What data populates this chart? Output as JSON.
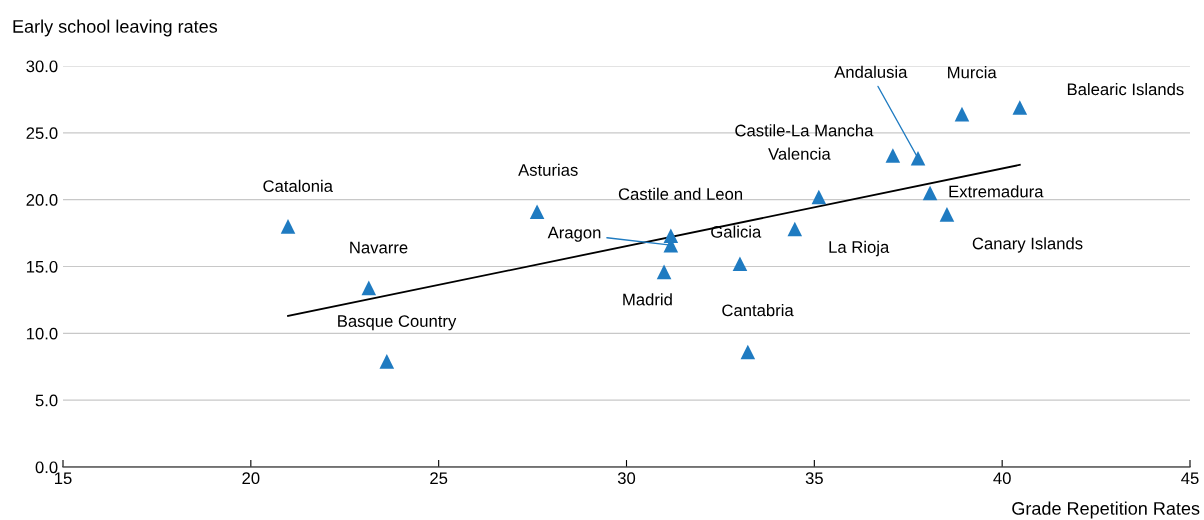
{
  "chart_data": {
    "type": "scatter",
    "xlabel": "Grade Repetition Rates",
    "ylabel": "Early school leaving rates",
    "xlim": [
      15,
      45
    ],
    "xticks": [
      15,
      20,
      25,
      30,
      35,
      40,
      45
    ],
    "ylim": [
      0,
      30
    ],
    "yticks": [
      {
        "value": 0,
        "label": "0.0"
      },
      {
        "value": 5,
        "label": "5.0"
      },
      {
        "value": 10,
        "label": "10.0"
      },
      {
        "value": 15,
        "label": "15.0"
      },
      {
        "value": 20,
        "label": "20.0"
      },
      {
        "value": 25,
        "label": "25.0"
      },
      {
        "value": 30,
        "label": "30.0"
      }
    ],
    "grid": "y",
    "legend": false,
    "series": [
      {
        "marker": "triangle",
        "color": "#1f7bc1",
        "x": [
          20.99,
          23.14,
          23.62,
          27.62,
          31.18,
          31.18,
          31.0,
          33.02,
          33.23,
          34.48,
          35.12,
          37.09,
          37.76,
          38.08,
          38.53,
          38.93,
          40.47
        ],
        "values": [
          18.0,
          13.4,
          7.9,
          19.1,
          17.3,
          16.6,
          14.6,
          15.2,
          8.6,
          17.8,
          20.2,
          23.3,
          23.1,
          20.5,
          18.9,
          26.4,
          26.9
        ]
      },
      {
        "type": "line",
        "color": "#000000",
        "x": [
          20.99,
          40.47
        ],
        "values": [
          11.3,
          22.6
        ]
      }
    ],
    "annotations": [
      {
        "text": "Catalonia",
        "x": 20.99,
        "y": 18.0
      },
      {
        "text": "Navarre",
        "x": 23.14,
        "y": 13.4
      },
      {
        "text": "Basque Country",
        "x": 23.62,
        "y": 7.9
      },
      {
        "text": "Asturias",
        "x": 27.62,
        "y": 19.1
      },
      {
        "text": "Castile and Leon",
        "x": 31.18,
        "y": 17.3
      },
      {
        "text": "Aragon",
        "x": 31.18,
        "y": 16.6
      },
      {
        "text": "Madrid",
        "x": 31.0,
        "y": 14.6
      },
      {
        "text": "Galicia",
        "x": 33.02,
        "y": 15.2
      },
      {
        "text": "Cantabria",
        "x": 33.23,
        "y": 8.6
      },
      {
        "text": "La Rioja",
        "x": 34.48,
        "y": 17.8
      },
      {
        "text": "Valencia",
        "x": 35.12,
        "y": 20.2
      },
      {
        "text": "Castile-La Mancha",
        "x": 37.09,
        "y": 23.3
      },
      {
        "text": "Andalusia",
        "x": 37.76,
        "y": 23.1
      },
      {
        "text": "Extremadura",
        "x": 38.08,
        "y": 20.5
      },
      {
        "text": "Canary Islands",
        "x": 38.53,
        "y": 18.9
      },
      {
        "text": "Murcia",
        "x": 38.93,
        "y": 26.4
      },
      {
        "text": "Balearic Islands",
        "x": 40.47,
        "y": 26.9
      }
    ]
  }
}
